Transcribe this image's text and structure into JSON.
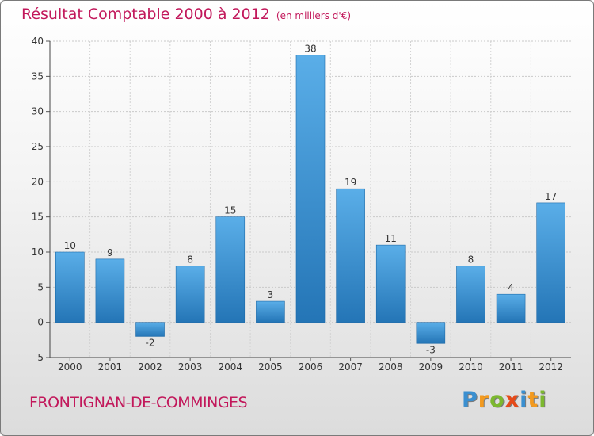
{
  "title": "Résultat Comptable 2000 à 2012",
  "subtitle": "(en milliers d'€)",
  "commune": "FRONTIGNAN-DE-COMMINGES",
  "brand": {
    "letters": [
      "P",
      "r",
      "o",
      "x",
      "i",
      "t",
      "i"
    ],
    "colors": [
      "#3a8fd0",
      "#f39a1f",
      "#7cb82f",
      "#e64a19",
      "#3a8fd0",
      "#f39a1f",
      "#7cb82f"
    ]
  },
  "chart_data": {
    "type": "bar",
    "title": "Résultat Comptable 2000 à 2012",
    "subtitle": "(en milliers d'€)",
    "xlabel": "",
    "ylabel": "",
    "categories": [
      "2000",
      "2001",
      "2002",
      "2003",
      "2004",
      "2005",
      "2006",
      "2007",
      "2008",
      "2009",
      "2010",
      "2011",
      "2012"
    ],
    "values": [
      10,
      9,
      -2,
      8,
      15,
      3,
      38,
      19,
      11,
      -3,
      8,
      4,
      17
    ],
    "ylim": [
      -5,
      40
    ],
    "yticks": [
      -5,
      0,
      5,
      10,
      15,
      20,
      25,
      30,
      35,
      40
    ],
    "grid": true,
    "bar_color": "#3f98dd"
  }
}
